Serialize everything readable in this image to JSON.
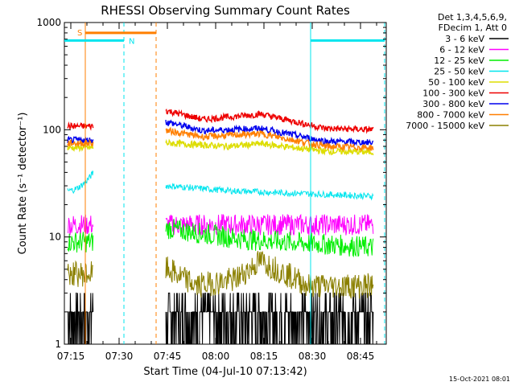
{
  "chart_data": {
    "type": "line",
    "title": "RHESSI Observing Summary Count Rates",
    "xlabel": "Start Time (04-Jul-10 07:13:42)",
    "ylabel": "Count Rate (s⁻¹ detector⁻¹)",
    "ylog": true,
    "ylim": [
      1,
      1000
    ],
    "xlim_minutes": [
      -1.0,
      99.0
    ],
    "x_unit": "minutes after 07:14:00",
    "xticks": [
      {
        "t": 1,
        "label": "07:15"
      },
      {
        "t": 16,
        "label": "07:30"
      },
      {
        "t": 31,
        "label": "07:45"
      },
      {
        "t": 46,
        "label": "08:00"
      },
      {
        "t": 61,
        "label": "08:15"
      },
      {
        "t": 76,
        "label": "08:30"
      },
      {
        "t": 91,
        "label": "08:45"
      }
    ],
    "yticks": [
      {
        "v": 1,
        "label": "1"
      },
      {
        "v": 10,
        "label": "10"
      },
      {
        "v": 100,
        "label": "100"
      },
      {
        "v": 1000,
        "label": "1000"
      }
    ],
    "legend_header": [
      "Det 1,3,4,5,6,9,",
      "FDecim 1, Att 0"
    ],
    "series": [
      {
        "name": "3 - 6 keV",
        "color": "#000000",
        "style": "noise"
      },
      {
        "name": "6 - 12 keV",
        "color": "#ff00ff",
        "values_pre": [
          13
        ],
        "values_post": [
          [
            31,
            13
          ],
          [
            95,
            13
          ]
        ]
      },
      {
        "name": "12 - 25 keV",
        "color": "#00ee00",
        "values_pre": [
          9
        ],
        "values_post": [
          [
            31,
            12
          ],
          [
            55,
            9.5
          ],
          [
            95,
            8
          ]
        ]
      },
      {
        "name": "25 - 50 keV",
        "color": "#00e5ee",
        "values_pre": [
          27,
          40
        ],
        "values_post": [
          [
            31,
            30
          ],
          [
            50,
            27
          ],
          [
            95,
            24
          ]
        ]
      },
      {
        "name": "50 - 100 keV",
        "color": "#dddd00",
        "values_pre": [
          68
        ],
        "values_post": [
          [
            31,
            75
          ],
          [
            50,
            70
          ],
          [
            60,
            74
          ],
          [
            80,
            63
          ],
          [
            95,
            62
          ]
        ]
      },
      {
        "name": "100 - 300 keV",
        "color": "#ee0000",
        "values_pre": [
          108
        ],
        "values_post": [
          [
            31,
            150
          ],
          [
            42,
            125
          ],
          [
            60,
            140
          ],
          [
            80,
            103
          ],
          [
            95,
            100
          ]
        ]
      },
      {
        "name": "300 - 800 keV",
        "color": "#0000ee",
        "values_pre": [
          80
        ],
        "values_post": [
          [
            31,
            118
          ],
          [
            42,
            98
          ],
          [
            60,
            103
          ],
          [
            80,
            78
          ],
          [
            95,
            76
          ]
        ]
      },
      {
        "name": "800 - 7000 keV",
        "color": "#ff7f00",
        "values_pre": [
          75
        ],
        "values_post": [
          [
            31,
            98
          ],
          [
            42,
            86
          ],
          [
            60,
            92
          ],
          [
            80,
            70
          ],
          [
            95,
            68
          ]
        ]
      },
      {
        "name": "7000 - 15000 keV",
        "color": "#8b8000",
        "values_pre": [
          4.5
        ],
        "values_post": [
          [
            31,
            5
          ],
          [
            40,
            3.5
          ],
          [
            52,
            4
          ],
          [
            60,
            6
          ],
          [
            68,
            4.5
          ],
          [
            75,
            3.5
          ],
          [
            95,
            3.5
          ]
        ]
      }
    ],
    "annotations": [
      {
        "label": "S",
        "color": "#ff7f00",
        "t_start": 5.5,
        "t_end": 27.5,
        "value": 800
      },
      {
        "label": "N",
        "color": "#00e5ee",
        "t_start": -1.0,
        "t_end": 17.5,
        "value": 680
      },
      {
        "label": "",
        "color": "#00e5ee",
        "t_start": 75.5,
        "t_end": 98.5,
        "value": 680
      }
    ],
    "markers": [
      {
        "t": 5.5,
        "color": "#ff7f00",
        "style": "solid"
      },
      {
        "t": 27.5,
        "color": "#ff7f00",
        "style": "dashed"
      },
      {
        "t": 17.5,
        "color": "#00e5ee",
        "style": "dashed"
      },
      {
        "t": 75.5,
        "color": "#00e5ee",
        "style": "solid"
      },
      {
        "t": 98.5,
        "color": "#00e5ee",
        "style": "dashed"
      }
    ],
    "gap": [
      8.5,
      30.5
    ],
    "footer": "15-Oct-2021 08:01"
  }
}
